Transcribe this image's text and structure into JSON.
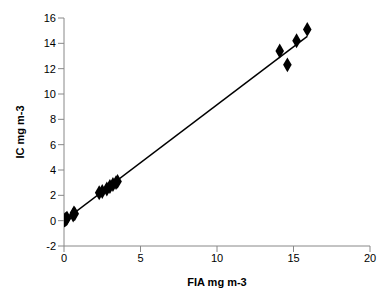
{
  "chart_data": {
    "type": "scatter",
    "x_label": "FIA  mg m-3",
    "y_label": "IC  mg m-3",
    "x": [
      0.05,
      0.1,
      0.15,
      0.2,
      0.6,
      0.65,
      0.7,
      2.3,
      2.5,
      2.8,
      3.0,
      3.2,
      3.4,
      3.5,
      14.1,
      14.6,
      15.2,
      15.9
    ],
    "values": [
      0.05,
      0.1,
      0.15,
      0.2,
      0.45,
      0.6,
      0.55,
      2.2,
      2.3,
      2.5,
      2.7,
      2.85,
      3.0,
      3.1,
      13.4,
      12.3,
      14.2,
      15.1
    ],
    "trend_line": {
      "x": [
        0,
        15.9
      ],
      "values": [
        0,
        14.55
      ]
    },
    "color": "#000000",
    "marker": "diamond",
    "xlim": [
      0,
      20
    ],
    "xticks": [
      0,
      5,
      10,
      15,
      20
    ],
    "ylim": [
      -2,
      16
    ],
    "yticks": [
      -2,
      0,
      2,
      4,
      6,
      8,
      10,
      12,
      14,
      16
    ],
    "grid": false
  }
}
